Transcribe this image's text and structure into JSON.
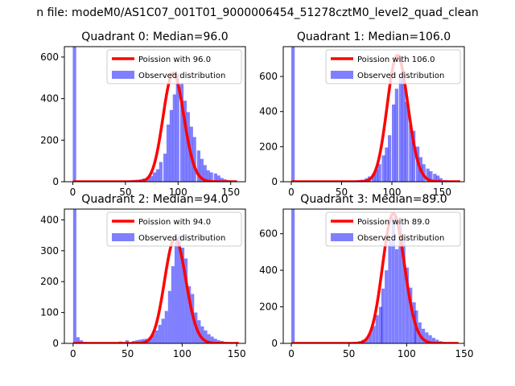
{
  "figure": {
    "suptitle": "n file: modeM0/AS1C07_001T01_9000006454_51278cztM0_level2_quad_clean"
  },
  "colors": {
    "hist": "#0000ff",
    "hist_opacity": 0.5,
    "poisson": "#ff0000",
    "axes": "#000000",
    "background": "#ffffff"
  },
  "chart_data": [
    {
      "type": "bar",
      "title": "Quadrant 0: Median=96.0",
      "xlim": [
        -8,
        164
      ],
      "ylim": [
        0,
        650
      ],
      "xticks": [
        0,
        50,
        100,
        150
      ],
      "yticks": [
        0,
        200,
        400,
        600
      ],
      "legend_placement": "upper-right",
      "bin_width": 3.2,
      "histogram": {
        "name": "Observed distribution",
        "bins": [
          [
            0,
            650
          ],
          [
            4,
            1
          ],
          [
            48,
            3
          ],
          [
            51,
            4
          ],
          [
            54,
            8
          ],
          [
            57,
            9
          ],
          [
            60,
            10
          ],
          [
            63,
            12
          ],
          [
            66,
            16
          ],
          [
            70,
            20
          ],
          [
            73,
            27
          ],
          [
            76,
            45
          ],
          [
            79,
            60
          ],
          [
            82,
            95
          ],
          [
            86,
            135
          ],
          [
            89,
            275
          ],
          [
            92,
            345
          ],
          [
            95,
            420
          ],
          [
            98,
            520
          ],
          [
            102,
            475
          ],
          [
            105,
            390
          ],
          [
            108,
            335
          ],
          [
            111,
            265
          ],
          [
            114,
            215
          ],
          [
            118,
            150
          ],
          [
            121,
            110
          ],
          [
            124,
            80
          ],
          [
            127,
            55
          ],
          [
            130,
            45
          ],
          [
            134,
            40
          ],
          [
            137,
            30
          ],
          [
            140,
            18
          ],
          [
            143,
            12
          ],
          [
            146,
            8
          ],
          [
            150,
            5
          ],
          [
            153,
            3
          ]
        ]
      },
      "poisson": {
        "name": "Poission with 96.0",
        "mu": 96.0,
        "amplitude": 522,
        "xrange": [
          0,
          156
        ]
      }
    },
    {
      "type": "bar",
      "title": "Quadrant 1: Median=106.0",
      "xlim": [
        -8,
        172
      ],
      "ylim": [
        0,
        770
      ],
      "xticks": [
        0,
        50,
        100,
        150
      ],
      "yticks": [
        0,
        200,
        400,
        600
      ],
      "legend_placement": "upper-right",
      "bin_width": 3.4,
      "histogram": {
        "name": "Observed distribution",
        "bins": [
          [
            0,
            770
          ],
          [
            52,
            3
          ],
          [
            56,
            4
          ],
          [
            59,
            6
          ],
          [
            63,
            8
          ],
          [
            66,
            10
          ],
          [
            69,
            12
          ],
          [
            73,
            20
          ],
          [
            76,
            30
          ],
          [
            80,
            45
          ],
          [
            83,
            70
          ],
          [
            86,
            100
          ],
          [
            90,
            150
          ],
          [
            93,
            195
          ],
          [
            96,
            265
          ],
          [
            100,
            440
          ],
          [
            103,
            530
          ],
          [
            107,
            600
          ],
          [
            110,
            605
          ],
          [
            113,
            455
          ],
          [
            117,
            325
          ],
          [
            120,
            290
          ],
          [
            124,
            200
          ],
          [
            127,
            140
          ],
          [
            130,
            100
          ],
          [
            134,
            75
          ],
          [
            137,
            60
          ],
          [
            141,
            45
          ],
          [
            144,
            35
          ],
          [
            147,
            20
          ],
          [
            151,
            10
          ],
          [
            154,
            8
          ],
          [
            158,
            5
          ],
          [
            161,
            2
          ]
        ]
      },
      "poisson": {
        "name": "Poission with 106.0",
        "mu": 106.0,
        "amplitude": 720,
        "xrange": [
          0,
          168
        ]
      }
    },
    {
      "type": "bar",
      "title": "Quadrant 2: Median=94.0",
      "xlim": [
        -8,
        158
      ],
      "ylim": [
        0,
        435
      ],
      "xticks": [
        0,
        50,
        100,
        150
      ],
      "yticks": [
        0,
        100,
        200,
        300,
        400
      ],
      "legend_placement": "upper-right",
      "bin_width": 3.0,
      "histogram": {
        "name": "Observed distribution",
        "bins": [
          [
            0,
            435
          ],
          [
            3,
            20
          ],
          [
            6,
            10
          ],
          [
            9,
            5
          ],
          [
            12,
            3
          ],
          [
            24,
            2
          ],
          [
            36,
            2
          ],
          [
            42,
            6
          ],
          [
            45,
            3
          ],
          [
            48,
            10
          ],
          [
            51,
            4
          ],
          [
            54,
            8
          ],
          [
            57,
            10
          ],
          [
            60,
            12
          ],
          [
            63,
            14
          ],
          [
            66,
            15
          ],
          [
            69,
            20
          ],
          [
            72,
            30
          ],
          [
            75,
            42
          ],
          [
            78,
            60
          ],
          [
            81,
            80
          ],
          [
            84,
            105
          ],
          [
            87,
            170
          ],
          [
            90,
            250
          ],
          [
            93,
            330
          ],
          [
            96,
            350
          ],
          [
            99,
            310
          ],
          [
            102,
            275
          ],
          [
            105,
            185
          ],
          [
            108,
            160
          ],
          [
            111,
            100
          ],
          [
            114,
            75
          ],
          [
            117,
            55
          ],
          [
            120,
            42
          ],
          [
            123,
            30
          ],
          [
            126,
            22
          ],
          [
            129,
            15
          ],
          [
            132,
            10
          ],
          [
            135,
            8
          ],
          [
            138,
            5
          ],
          [
            141,
            3
          ]
        ]
      },
      "poisson": {
        "name": "Poission with 94.0",
        "mu": 94.0,
        "amplitude": 340,
        "xrange": [
          0,
          152
        ]
      }
    },
    {
      "type": "bar",
      "title": "Quadrant 3: Median=89.0",
      "xlim": [
        -7,
        150
      ],
      "ylim": [
        0,
        735
      ],
      "xticks": [
        0,
        50,
        100,
        150
      ],
      "yticks": [
        0,
        200,
        400,
        600
      ],
      "legend_placement": "upper-right",
      "bin_width": 2.9,
      "histogram": {
        "name": "Observed distribution",
        "bins": [
          [
            0,
            735
          ],
          [
            46,
            3
          ],
          [
            49,
            5
          ],
          [
            52,
            6
          ],
          [
            55,
            8
          ],
          [
            58,
            12
          ],
          [
            61,
            20
          ],
          [
            64,
            30
          ],
          [
            67,
            60
          ],
          [
            70,
            95
          ],
          [
            73,
            155
          ],
          [
            76,
            200
          ],
          [
            78,
            300
          ],
          [
            81,
            400
          ],
          [
            84,
            560
          ],
          [
            87,
            690
          ],
          [
            90,
            515
          ],
          [
            93,
            650
          ],
          [
            96,
            580
          ],
          [
            99,
            415
          ],
          [
            102,
            305
          ],
          [
            105,
            225
          ],
          [
            107,
            180
          ],
          [
            110,
            115
          ],
          [
            113,
            80
          ],
          [
            116,
            60
          ],
          [
            119,
            45
          ],
          [
            122,
            30
          ],
          [
            125,
            20
          ],
          [
            128,
            12
          ],
          [
            131,
            8
          ],
          [
            134,
            5
          ],
          [
            137,
            3
          ]
        ]
      },
      "poisson": {
        "name": "Poission with 89.0",
        "mu": 89.0,
        "amplitude": 710,
        "xrange": [
          0,
          145
        ]
      }
    }
  ]
}
